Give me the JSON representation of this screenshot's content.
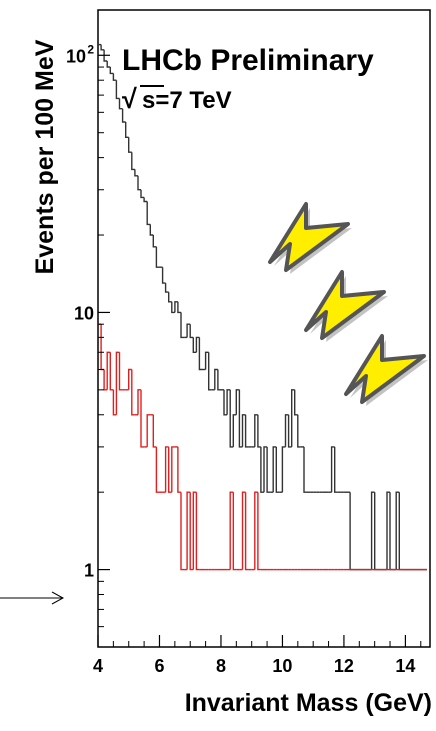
{
  "chart_data": {
    "type": "histogram",
    "title": "LHCb Preliminary",
    "subtitle_prefix": "√",
    "subtitle": "s=7 TeV",
    "xlabel": "Invariant Mass (GeV)",
    "ylabel": "Events per 100 MeV",
    "xlim": [
      4.0,
      14.8
    ],
    "ylim": [
      0.5,
      150
    ],
    "yscale": "log",
    "bin_width": 0.1,
    "x_ticks": [
      {
        "value": 4,
        "label": "4"
      },
      {
        "value": 6,
        "label": "6"
      },
      {
        "value": 8,
        "label": "8"
      },
      {
        "value": 10,
        "label": "10"
      },
      {
        "value": 12,
        "label": "12"
      },
      {
        "value": 14,
        "label": "14"
      }
    ],
    "y_ticks": [
      {
        "value": 1,
        "label": "1"
      },
      {
        "value": 10,
        "label": "10"
      },
      {
        "value": 100,
        "label": "10",
        "exponent": "2"
      }
    ],
    "colors": {
      "background": "#ffffff",
      "data": "#333333",
      "background_sample": "#e02020",
      "arrow_fill": "#ffee00",
      "arrow_stroke": "#555555",
      "axis": "#000000"
    },
    "series": [
      {
        "color": "#333333",
        "x_start": 4.0,
        "values": [
          110,
          105,
          95,
          90,
          85,
          80,
          68,
          62,
          55,
          48,
          42,
          36,
          34,
          30,
          28,
          27,
          22,
          20,
          18,
          15,
          15,
          13,
          12,
          11,
          10,
          11,
          10,
          8,
          8,
          9,
          8,
          7,
          8,
          6,
          6,
          7,
          5,
          5,
          6,
          5,
          5,
          4,
          5,
          3,
          4,
          5,
          3,
          4,
          3,
          3,
          3,
          4,
          3,
          2,
          3,
          2,
          2,
          3,
          2,
          2,
          3,
          4,
          3,
          5,
          4,
          3,
          3,
          2,
          2,
          2,
          2,
          2,
          2,
          2,
          2,
          2,
          3,
          2,
          2,
          2,
          2,
          2,
          1,
          1,
          1,
          1,
          1,
          1,
          1,
          2,
          1,
          1,
          1,
          1,
          2,
          1,
          1,
          2,
          1,
          1,
          1,
          1,
          1,
          1,
          1,
          1,
          1
        ]
      },
      {
        "color": "#e02020",
        "x_start": 4.0,
        "values": [
          9,
          6,
          5,
          7,
          5,
          4,
          7,
          5,
          5,
          5,
          6,
          4,
          4,
          5,
          3,
          3,
          4,
          4,
          3,
          2,
          2,
          2,
          3,
          2,
          3,
          3,
          2,
          1,
          1,
          2,
          1,
          2,
          1,
          1,
          1,
          1,
          1,
          1,
          1,
          1,
          1,
          1,
          1,
          2,
          1,
          1,
          1,
          2,
          1,
          1,
          1,
          2,
          1,
          1,
          1,
          1,
          1,
          1,
          1,
          1,
          1,
          1,
          1,
          1,
          1,
          1,
          1,
          1,
          1,
          1,
          1,
          1,
          1,
          1,
          1,
          1,
          1,
          1,
          1,
          1,
          1,
          1,
          1,
          1,
          1,
          1,
          1,
          1,
          1,
          1,
          1,
          1,
          1,
          1,
          1,
          1,
          1,
          1,
          1,
          1,
          1,
          1,
          1,
          1,
          1,
          1,
          1
        ]
      }
    ],
    "annotations": [
      {
        "kind": "arrow",
        "direction": "down-left",
        "target_peak": "9.46"
      },
      {
        "kind": "arrow",
        "direction": "down-left",
        "target_peak": "10.02"
      },
      {
        "kind": "arrow",
        "direction": "down-left",
        "target_peak": "10.36"
      },
      {
        "kind": "pointer-arrow",
        "points_to_y_value": 1
      }
    ]
  }
}
